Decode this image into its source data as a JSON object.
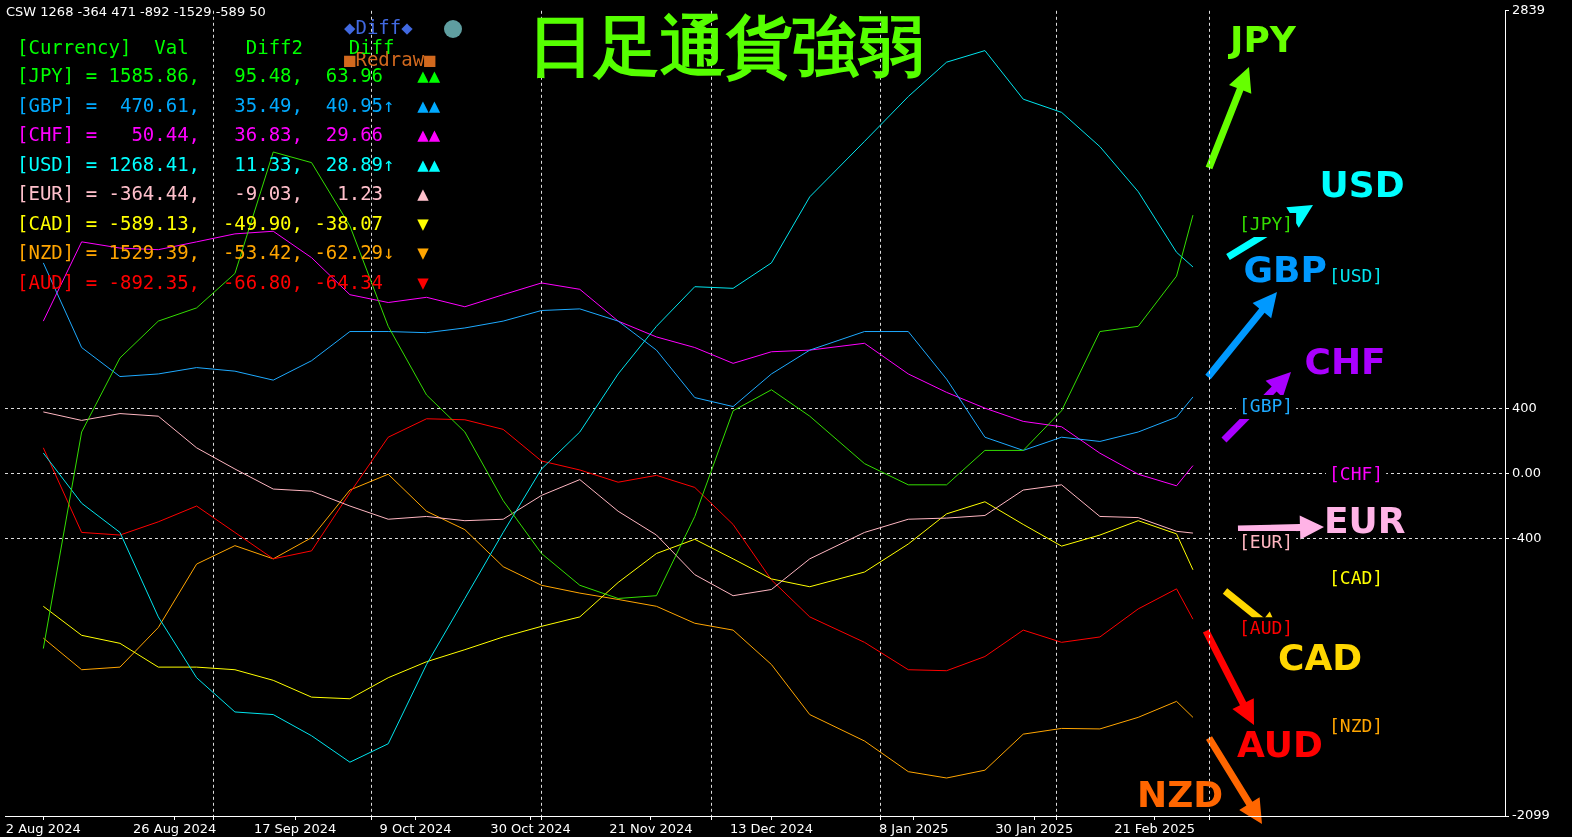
{
  "chart_data": {
    "type": "line",
    "title": "日足通貨強弱",
    "x": [
      "2024-08-02",
      "2024-08-09",
      "2024-08-16",
      "2024-08-23",
      "2024-08-30",
      "2024-09-06",
      "2024-09-13",
      "2024-09-20",
      "2024-09-27",
      "2024-10-04",
      "2024-10-11",
      "2024-10-18",
      "2024-10-25",
      "2024-11-01",
      "2024-11-08",
      "2024-11-15",
      "2024-11-22",
      "2024-11-29",
      "2024-12-06",
      "2024-12-13",
      "2024-12-20",
      "2024-12-30",
      "2025-01-07",
      "2025-01-14",
      "2025-01-21",
      "2025-01-28",
      "2025-02-04",
      "2025-02-11",
      "2025-02-18",
      "2025-02-25",
      "2025-02-28"
    ],
    "series": [
      {
        "name": "[JPY]",
        "color": "#33dd00",
        "values": [
          -1072,
          256,
          710,
          936,
          1017,
          1228,
          1973,
          1908,
          1520,
          904,
          483,
          256,
          -165,
          -489,
          -684,
          -765,
          -748,
          -262,
          386,
          515,
          353,
          62,
          -68,
          -68,
          143,
          143,
          386,
          872,
          904,
          1212,
          1586
        ]
      },
      {
        "name": "[USD]",
        "color": "#00e5ee",
        "values": [
          127,
          -181,
          -360,
          -878,
          -1251,
          -1461,
          -1477,
          -1607,
          -1769,
          -1656,
          -1170,
          -765,
          -360,
          29,
          256,
          612,
          904,
          1147,
          1137,
          1293,
          1698,
          2038,
          2313,
          2524,
          2595,
          2297,
          2216,
          2006,
          1730,
          1358,
          1268
        ]
      },
      {
        "name": "[GBP]",
        "color": "#1eaaff",
        "values": [
          1293,
          774,
          596,
          612,
          651,
          629,
          574,
          693,
          872,
          872,
          865,
          894,
          936,
          1001,
          1011,
          936,
          758,
          467,
          412,
          612,
          758,
          872,
          872,
          580,
          224,
          143,
          224,
          198,
          256,
          347,
          471
        ]
      },
      {
        "name": "[CHF]",
        "color": "#ff00ff",
        "values": [
          936,
          1422,
          1384,
          1374,
          1422,
          1471,
          1487,
          1325,
          1098,
          1050,
          1082,
          1024,
          1098,
          1170,
          1131,
          936,
          839,
          774,
          677,
          748,
          758,
          800,
          612,
          499,
          402,
          321,
          288,
          126,
          -3,
          -74,
          50
        ]
      },
      {
        "name": "[EUR]",
        "color": "#ffb6c1",
        "values": [
          379,
          327,
          369,
          353,
          159,
          29,
          -94,
          -107,
          -198,
          -279,
          -262,
          -288,
          -279,
          -133,
          -36,
          -230,
          -376,
          -619,
          -748,
          -710,
          -522,
          -360,
          -279,
          -272,
          -256,
          -100,
          -68,
          -262,
          -269,
          -353,
          -364
        ]
      },
      {
        "name": "[CAD]",
        "color": "#ffff00",
        "values": [
          -813,
          -991,
          -1040,
          -1186,
          -1186,
          -1202,
          -1267,
          -1370,
          -1380,
          -1251,
          -1153,
          -1079,
          -1001,
          -936,
          -878,
          -667,
          -489,
          -402,
          -522,
          -645,
          -693,
          -603,
          -431,
          -246,
          -172,
          -311,
          -444,
          -376,
          -288,
          -369,
          -589
        ]
      },
      {
        "name": "[AUD]",
        "color": "#ff0000",
        "values": [
          159,
          -360,
          -376,
          -295,
          -198,
          -360,
          -522,
          -473,
          -117,
          224,
          337,
          331,
          272,
          78,
          23,
          -52,
          -10,
          -84,
          -311,
          -651,
          -878,
          -1034,
          -1202,
          -1208,
          -1121,
          -959,
          -1034,
          -1001,
          -829,
          -706,
          -892
        ]
      },
      {
        "name": "[NZD]",
        "color": "#ffa500",
        "values": [
          -1008,
          -1202,
          -1186,
          -943,
          -554,
          -441,
          -522,
          -392,
          -100,
          -3,
          -230,
          -343,
          -570,
          -684,
          -732,
          -771,
          -813,
          -917,
          -959,
          -1170,
          -1477,
          -1639,
          -1827,
          -1866,
          -1818,
          -1597,
          -1562,
          -1565,
          -1494,
          -1396,
          -1494
        ]
      }
    ],
    "xlim": [
      "2024-07-26",
      "2025-04-26"
    ],
    "xticks": [
      {
        "value": "2024-08-02",
        "label": "2 Aug 2024"
      },
      {
        "value": "2024-08-26",
        "label": "26 Aug 2024"
      },
      {
        "value": "2024-09-02",
        "label": null
      },
      {
        "value": "2024-09-17",
        "label": "17 Sep 2024"
      },
      {
        "value": "2024-10-01",
        "label": null
      },
      {
        "value": "2024-10-09",
        "label": "9 Oct 2024"
      },
      {
        "value": "2024-10-30",
        "label": "30 Oct 2024"
      },
      {
        "value": "2024-11-01",
        "label": null
      },
      {
        "value": "2024-11-21",
        "label": "21 Nov 2024"
      },
      {
        "value": "2024-12-02",
        "label": null
      },
      {
        "value": "2024-12-13",
        "label": "13 Dec 2024"
      },
      {
        "value": "2025-01-02",
        "label": null
      },
      {
        "value": "2025-01-08",
        "label": "8 Jan 2025"
      },
      {
        "value": "2025-01-30",
        "label": "30 Jan 2025"
      },
      {
        "value": "2025-02-03",
        "label": null
      },
      {
        "value": "2025-02-21",
        "label": "21 Feb 2025"
      },
      {
        "value": "2025-03-03",
        "label": null
      }
    ],
    "ylim": [
      -2099,
      2839
    ],
    "yticks": [
      -2099,
      -400,
      {
        "value": 0,
        "label": "0.00"
      },
      400,
      2839
    ],
    "grid": true,
    "annotations": [
      "CSW 1268 -364 471 -892 -1529 -589 50",
      "◆Diff◆",
      "■Redraw■",
      "[Currency]  Val     Diff2    Diff",
      "[JPY] = 1585.86,   95.48,  63.96   ▲▲",
      "[GBP] =  470.61,   35.49,  40.95↑  ▲▲",
      "[CHF] =   50.44,   36.83,  29.66   ▲▲",
      "[USD] = 1268.41,   11.33,  28.89↑  ▲▲",
      "[EUR] = -364.44,   -9.03,   1.23   ▲",
      "[CAD] = -589.13,  -49.90, -38.07   ▼",
      "[NZD] = 1529.39,  -53.42, -62.29↓  ▼",
      "[AUD] = -892.35,  -66.80, -64.34   ▼",
      "JPY",
      "USD",
      "GBP",
      "CHF",
      "EUR",
      "CAD",
      "AUD",
      "NZD"
    ]
  }
}
